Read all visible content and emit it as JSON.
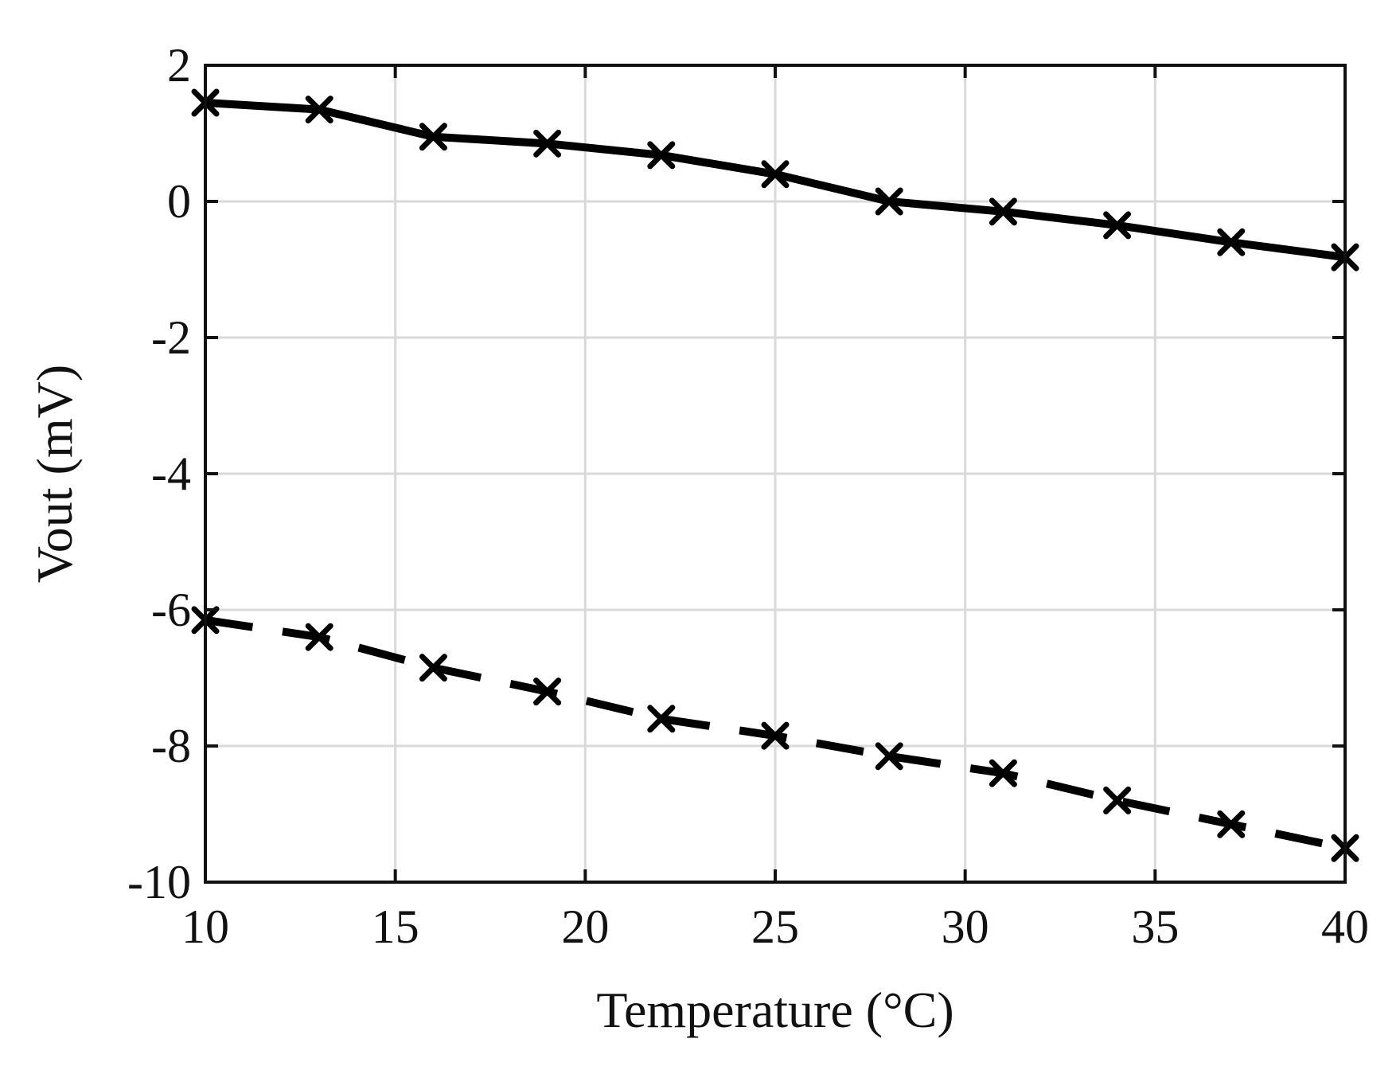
{
  "chart_data": {
    "type": "line",
    "title": "",
    "xlabel": "Temperature (°C)",
    "ylabel": "Vout (mV)",
    "xlim": [
      10,
      40
    ],
    "ylim": [
      -10,
      2
    ],
    "xticks": [
      10,
      15,
      20,
      25,
      30,
      35,
      40
    ],
    "yticks": [
      -10,
      -8,
      -6,
      -4,
      -2,
      0,
      2
    ],
    "grid": true,
    "legend": "none",
    "x": [
      10,
      13,
      16,
      19,
      22,
      25,
      28,
      31,
      34,
      37,
      40
    ],
    "series": [
      {
        "style": "solid",
        "marker": "x",
        "color": "#000000",
        "values": [
          1.45,
          1.35,
          0.95,
          0.85,
          0.68,
          0.4,
          0.0,
          -0.15,
          -0.35,
          -0.6,
          -0.82
        ]
      },
      {
        "style": "dashed",
        "marker": "x",
        "color": "#000000",
        "values": [
          -6.15,
          -6.4,
          -6.85,
          -7.2,
          -7.6,
          -7.85,
          -8.15,
          -8.4,
          -8.8,
          -9.15,
          -9.5
        ]
      }
    ]
  }
}
